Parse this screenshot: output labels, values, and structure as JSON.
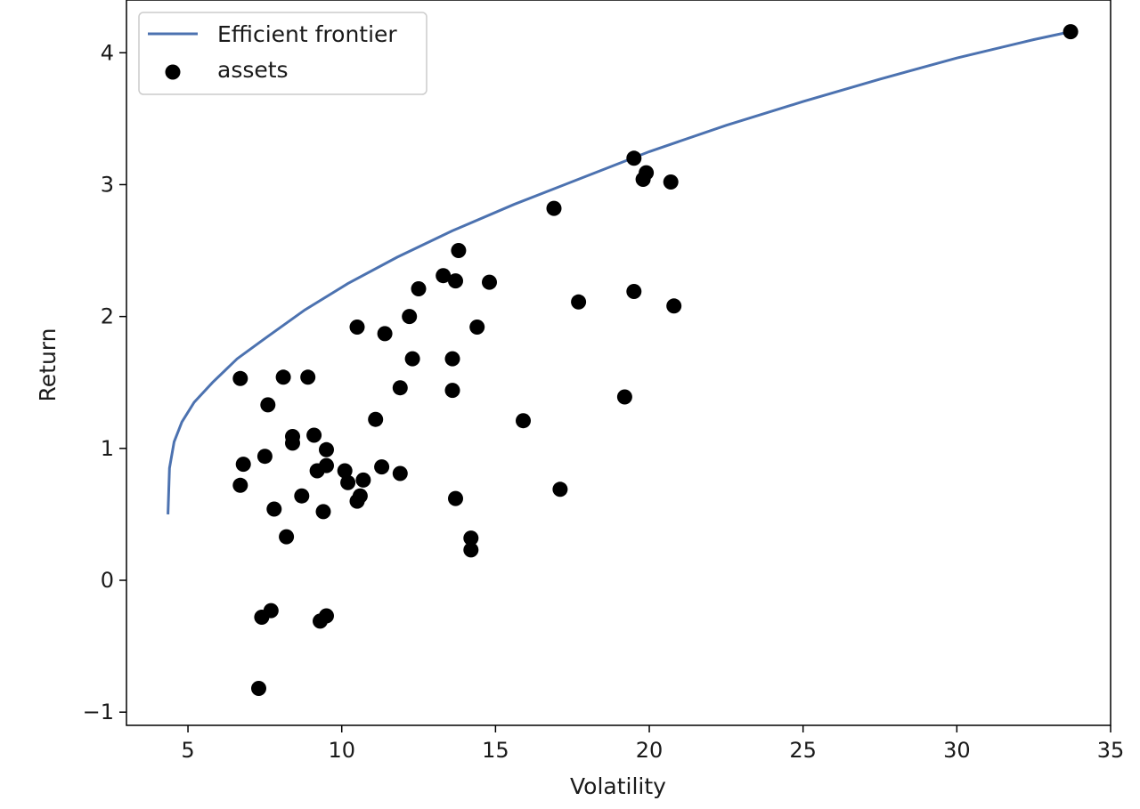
{
  "chart_data": {
    "type": "scatter",
    "title": "",
    "xlabel": "Volatility",
    "ylabel": "Return",
    "xlim": [
      3,
      35
    ],
    "ylim": [
      -1.1,
      4.4
    ],
    "xticks": [
      5,
      10,
      15,
      20,
      25,
      30,
      35
    ],
    "yticks": [
      -1,
      0,
      1,
      2,
      3,
      4
    ],
    "xtick_labels": [
      "5",
      "10",
      "15",
      "20",
      "25",
      "30",
      "35"
    ],
    "ytick_labels": [
      "−1",
      "0",
      "1",
      "2",
      "3",
      "4"
    ],
    "grid": false,
    "legend": {
      "position": "top-left",
      "entries": [
        "Efficient frontier",
        "assets"
      ]
    },
    "series": [
      {
        "name": "Efficient frontier",
        "type": "line",
        "color": "#4c72b0",
        "x": [
          4.35,
          4.4,
          4.55,
          4.8,
          5.2,
          5.8,
          6.6,
          7.6,
          8.8,
          10.2,
          11.8,
          13.6,
          15.6,
          17.8,
          20.0,
          22.5,
          25.0,
          27.5,
          30.0,
          32.5,
          33.7
        ],
        "y": [
          0.5,
          0.85,
          1.05,
          1.2,
          1.35,
          1.5,
          1.68,
          1.85,
          2.05,
          2.25,
          2.45,
          2.65,
          2.85,
          3.05,
          3.25,
          3.45,
          3.63,
          3.8,
          3.96,
          4.1,
          4.16
        ]
      },
      {
        "name": "assets",
        "type": "scatter",
        "color": "#000000",
        "points": [
          [
            33.7,
            4.16
          ],
          [
            19.5,
            3.2
          ],
          [
            19.9,
            3.09
          ],
          [
            19.8,
            3.04
          ],
          [
            20.7,
            3.02
          ],
          [
            16.9,
            2.82
          ],
          [
            13.8,
            2.5
          ],
          [
            13.3,
            2.31
          ],
          [
            13.7,
            2.27
          ],
          [
            12.5,
            2.21
          ],
          [
            14.8,
            2.26
          ],
          [
            19.5,
            2.19
          ],
          [
            17.7,
            2.11
          ],
          [
            20.8,
            2.08
          ],
          [
            12.2,
            2.0
          ],
          [
            10.5,
            1.92
          ],
          [
            11.4,
            1.87
          ],
          [
            14.4,
            1.92
          ],
          [
            12.3,
            1.68
          ],
          [
            13.6,
            1.68
          ],
          [
            6.7,
            1.53
          ],
          [
            8.1,
            1.54
          ],
          [
            8.9,
            1.54
          ],
          [
            11.9,
            1.46
          ],
          [
            13.6,
            1.44
          ],
          [
            19.2,
            1.39
          ],
          [
            7.6,
            1.33
          ],
          [
            15.9,
            1.21
          ],
          [
            11.1,
            1.22
          ],
          [
            8.4,
            1.09
          ],
          [
            9.1,
            1.1
          ],
          [
            8.4,
            1.04
          ],
          [
            9.5,
            0.99
          ],
          [
            7.5,
            0.94
          ],
          [
            6.8,
            0.88
          ],
          [
            9.5,
            0.87
          ],
          [
            9.2,
            0.83
          ],
          [
            10.1,
            0.83
          ],
          [
            11.3,
            0.86
          ],
          [
            11.9,
            0.81
          ],
          [
            10.2,
            0.74
          ],
          [
            10.7,
            0.76
          ],
          [
            6.7,
            0.72
          ],
          [
            17.1,
            0.69
          ],
          [
            8.7,
            0.64
          ],
          [
            10.6,
            0.64
          ],
          [
            10.5,
            0.6
          ],
          [
            13.7,
            0.62
          ],
          [
            7.8,
            0.54
          ],
          [
            9.4,
            0.52
          ],
          [
            8.2,
            0.33
          ],
          [
            14.2,
            0.32
          ],
          [
            14.2,
            0.23
          ],
          [
            7.7,
            -0.23
          ],
          [
            7.4,
            -0.28
          ],
          [
            9.5,
            -0.27
          ],
          [
            9.3,
            -0.31
          ],
          [
            7.3,
            -0.82
          ]
        ]
      }
    ]
  }
}
